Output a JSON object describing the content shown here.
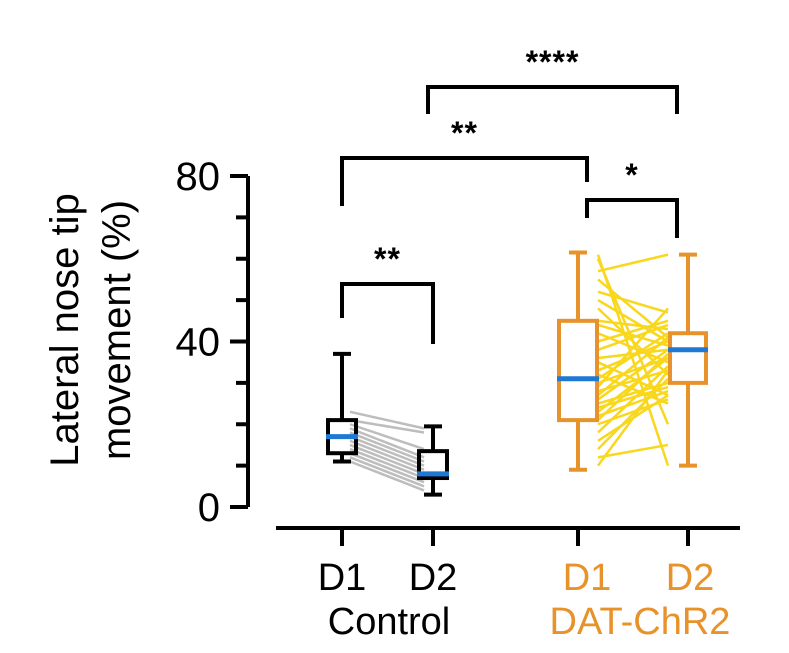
{
  "colors": {
    "control": "#000000",
    "treatment": "#E8922B",
    "median": "#1F78D4",
    "control_pairs": "#BDBDBD",
    "treatment_pairs": "#F9D71C"
  },
  "chart_data": {
    "type": "box",
    "ylabel_line1": "Lateral nose tip",
    "ylabel_line2": "movement (%)",
    "ylim": [
      0,
      80
    ],
    "yticks": [
      0,
      40,
      80
    ],
    "ytick_labels": [
      "0",
      "40",
      "80"
    ],
    "groups": [
      {
        "label": "Control",
        "color_key": "control",
        "categories": [
          "D1",
          "D2"
        ]
      },
      {
        "label": "DAT-ChR2",
        "color_key": "treatment",
        "categories": [
          "D1",
          "D2"
        ]
      }
    ],
    "boxes": [
      {
        "group": "Control",
        "category": "D1",
        "min": 11,
        "q1": 13,
        "median": 17,
        "q3": 21,
        "max": 37
      },
      {
        "group": "Control",
        "category": "D2",
        "min": 3,
        "q1": 7,
        "median": 8,
        "q3": 13.5,
        "max": 19.5
      },
      {
        "group": "DAT-ChR2",
        "category": "D1",
        "min": 9,
        "q1": 21,
        "median": 31,
        "q3": 45,
        "max": 61.5
      },
      {
        "group": "DAT-ChR2",
        "category": "D2",
        "min": 10,
        "q1": 30,
        "median": 38,
        "q3": 42,
        "max": 61
      }
    ],
    "paired_lines": {
      "Control": [
        [
          23,
          19
        ],
        [
          21,
          18
        ],
        [
          20,
          14
        ],
        [
          19,
          12
        ],
        [
          18,
          11
        ],
        [
          17,
          10
        ],
        [
          16,
          9
        ],
        [
          15,
          8
        ],
        [
          14,
          7
        ],
        [
          13,
          6
        ],
        [
          12,
          5
        ],
        [
          11,
          4
        ]
      ],
      "DAT-ChR2": [
        [
          61,
          10
        ],
        [
          60,
          20
        ],
        [
          57,
          61
        ],
        [
          55,
          41
        ],
        [
          52,
          47
        ],
        [
          50,
          40
        ],
        [
          48,
          32
        ],
        [
          45,
          43
        ],
        [
          44,
          39
        ],
        [
          42,
          35
        ],
        [
          40,
          45
        ],
        [
          38,
          44
        ],
        [
          36,
          38
        ],
        [
          35,
          27
        ],
        [
          33,
          40
        ],
        [
          32,
          25
        ],
        [
          31,
          42
        ],
        [
          30,
          36
        ],
        [
          29,
          48
        ],
        [
          28,
          33
        ],
        [
          27,
          41
        ],
        [
          26,
          38
        ],
        [
          25,
          30
        ],
        [
          24,
          29
        ],
        [
          23,
          36
        ],
        [
          22,
          28
        ],
        [
          21,
          37
        ],
        [
          20,
          26
        ],
        [
          18,
          34
        ],
        [
          16,
          27
        ],
        [
          14,
          31
        ],
        [
          12,
          15
        ],
        [
          10,
          33
        ]
      ]
    },
    "significance": [
      {
        "from": "Control D1",
        "to": "Control D2",
        "label": "**"
      },
      {
        "from": "DAT-ChR2 D1",
        "to": "DAT-ChR2 D2",
        "label": "*"
      },
      {
        "from": "Control D1",
        "to": "DAT-ChR2 D1",
        "label": "**"
      },
      {
        "from": "Control D2",
        "to": "DAT-ChR2 D2",
        "label": "****"
      }
    ]
  }
}
